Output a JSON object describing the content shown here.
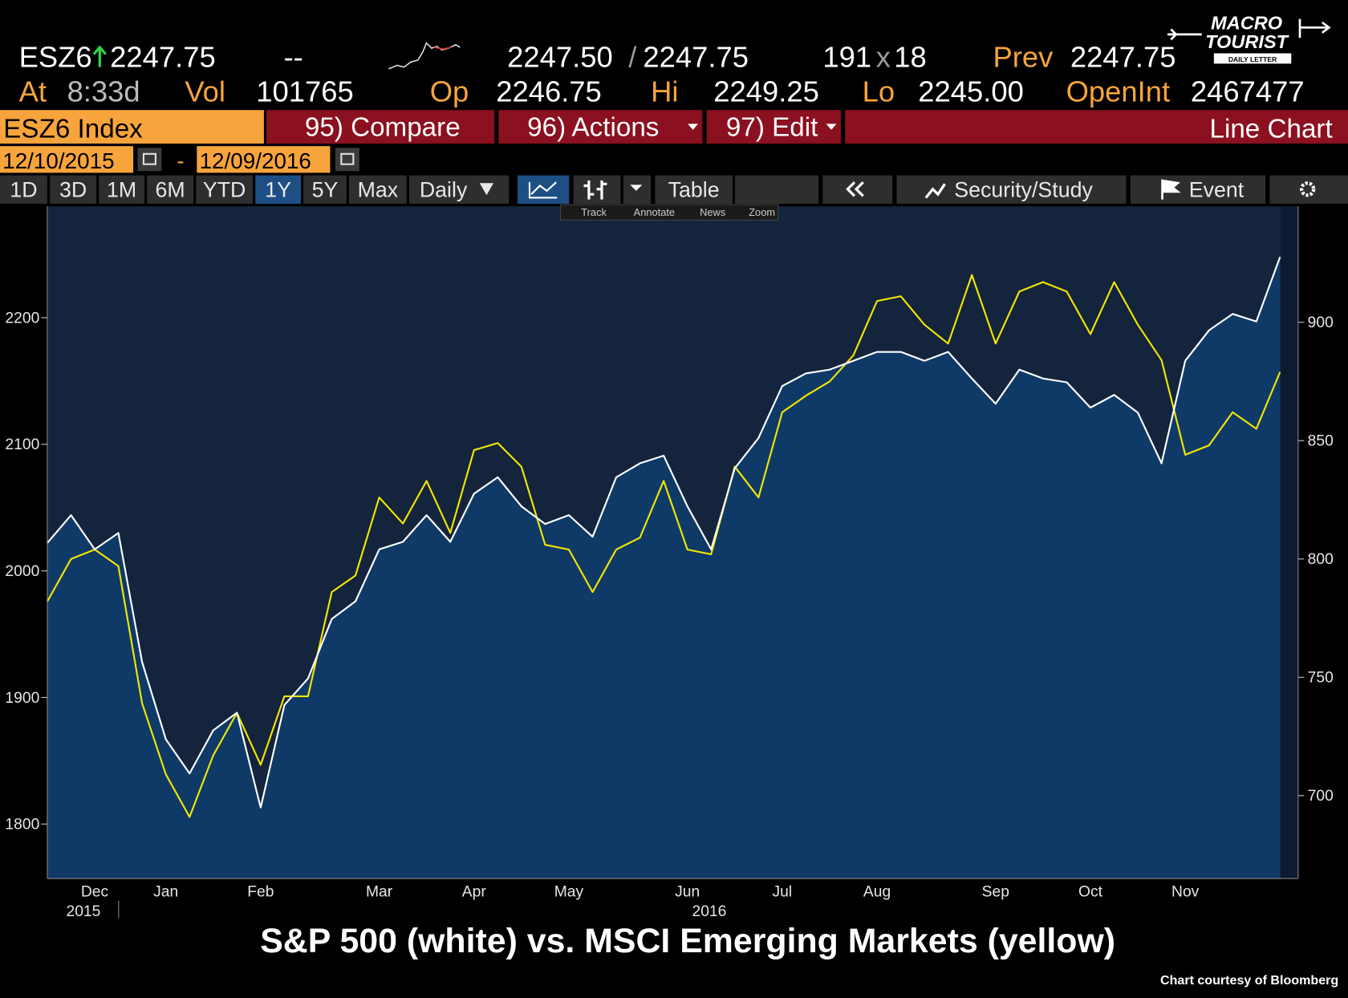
{
  "header": {
    "ticker": "ESZ6",
    "last": "2247.75",
    "change": "--",
    "bid": "2247.50",
    "separator": "/",
    "ask": "2247.75",
    "bid_size": "191",
    "size_separator": "x",
    "ask_size": "18",
    "prev_label": "Prev",
    "prev": "2247.75",
    "time_label": "At",
    "time": "8:33d",
    "volume_label": "Vol",
    "volume": "101765",
    "open_label": "Op",
    "open": "2246.75",
    "high_label": "Hi",
    "high": "2249.25",
    "low_label": "Lo",
    "low": "2245.00",
    "open_interest_label": "OpenInt",
    "open_interest": "2467477"
  },
  "logo": {
    "line1": "MACRO",
    "line2": "TOURIST",
    "line3": "DAILY LETTER"
  },
  "toolbar": {
    "security": "ESZ6 Index",
    "compare": "95) Compare",
    "actions": "96) Actions",
    "edit": "97) Edit",
    "view": "Line Chart"
  },
  "date_range": {
    "start": "12/10/2015",
    "separator": "-",
    "end": "12/09/2016"
  },
  "periods": [
    "1D",
    "3D",
    "1M",
    "6M",
    "YTD",
    "1Y",
    "5Y",
    "Max"
  ],
  "frequency": "Daily",
  "table_button": "Table",
  "security_study": "Security/Study",
  "event": "Event",
  "chart_tools": [
    "Track",
    "Annotate",
    "News",
    "Zoom"
  ],
  "chart_data": {
    "type": "line",
    "title": "S&P 500 (white) vs. MSCI Emerging Markets (yellow)",
    "source": "Chart courtesy of Bloomberg",
    "categories": [
      null,
      null,
      "Dec",
      null,
      null,
      "Jan",
      null,
      null,
      null,
      "Feb",
      null,
      null,
      null,
      null,
      "Mar",
      null,
      null,
      null,
      "Apr",
      null,
      null,
      null,
      "May",
      null,
      null,
      null,
      null,
      "Jun",
      null,
      null,
      null,
      "Jul",
      null,
      null,
      null,
      "Aug",
      null,
      null,
      null,
      null,
      "Sep",
      null,
      null,
      null,
      "Oct",
      null,
      null,
      null,
      "Nov",
      null,
      null,
      null,
      null
    ],
    "year_labels": [
      "2015",
      "2016"
    ],
    "series": [
      {
        "color": "#ffffff",
        "axis": "y",
        "values": [
          2022,
          2044,
          2017,
          2030,
          1928,
          1867,
          1840,
          1874,
          1888,
          1813,
          1894,
          1915,
          1962,
          1976,
          2017,
          2023,
          2044,
          2023,
          2061,
          2074,
          2051,
          2037,
          2044,
          2027,
          2074,
          2085,
          2091,
          2051,
          2017,
          2081,
          2105,
          2146,
          2156,
          2159,
          2166,
          2173,
          2173,
          2166,
          2173,
          2152,
          2132,
          2159,
          2152,
          2149,
          2129,
          2139,
          2125,
          2085,
          2166,
          2190,
          2203,
          2197,
          2248
        ]
      },
      {
        "color": "#f2e600",
        "axis": "y2",
        "values": [
          782,
          800,
          804,
          797,
          739,
          709,
          691,
          717,
          735,
          713,
          742,
          742,
          786,
          793,
          826,
          815,
          833,
          811,
          846,
          849,
          839,
          806,
          804,
          786,
          804,
          809,
          833,
          804,
          802,
          839,
          826,
          862,
          869,
          875,
          886,
          909,
          911,
          899,
          891,
          920,
          891,
          913,
          917,
          913,
          895,
          917,
          899,
          884,
          844,
          848,
          862,
          855,
          879
        ]
      }
    ],
    "ylim": [
      1757,
      2288
    ],
    "yticks": [
      1800,
      1900,
      2000,
      2100,
      2200
    ],
    "y2lim": [
      665,
      949
    ],
    "y2ticks": [
      700,
      750,
      800,
      850,
      900
    ],
    "area_fill": "#0f3a68",
    "plot_background": "#14243c"
  }
}
